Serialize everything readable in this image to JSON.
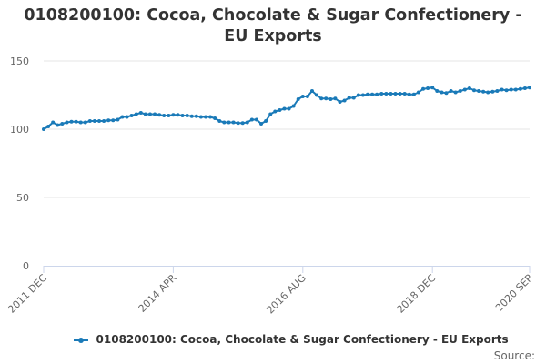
{
  "chart_data": {
    "type": "line",
    "title": "0108200100: Cocoa, Chocolate & Sugar Confectionery - EU Exports",
    "xlabel": "",
    "ylabel": "",
    "ylim": [
      0,
      150
    ],
    "yticks": [
      0,
      50,
      100,
      150
    ],
    "xtick_labels": [
      "2011 DEC",
      "2014 APR",
      "2016 AUG",
      "2018 DEC",
      "2020 SEP"
    ],
    "xtick_index": [
      0,
      28,
      56,
      84,
      105
    ],
    "grid": true,
    "legend_position": "bottom",
    "series": [
      {
        "name": "0108200100: Cocoa, Chocolate & Sugar Confectionery - EU Exports",
        "color": "#1a7ab8",
        "x_start": "2011 DEC",
        "frequency": "monthly",
        "values": [
          100,
          102,
          105,
          103,
          104,
          105,
          105.5,
          105.5,
          105,
          105,
          106,
          106,
          106,
          106,
          106.5,
          106.5,
          107,
          109,
          109,
          110,
          111,
          112,
          111,
          111,
          111,
          110.5,
          110,
          110,
          110.5,
          110.5,
          110,
          110,
          109.5,
          109.5,
          109,
          109,
          109,
          108,
          106,
          105,
          105,
          105,
          104.5,
          104.5,
          105,
          107,
          107,
          104,
          106,
          111,
          113,
          114,
          115,
          115,
          117,
          122,
          124,
          124,
          128,
          125,
          122.5,
          122.5,
          122,
          122.5,
          120,
          121,
          123,
          123,
          125,
          125,
          125.5,
          125.5,
          125.5,
          126,
          126,
          126,
          126,
          126,
          126,
          125.5,
          125.5,
          127,
          129.5,
          130,
          130.5,
          128,
          127,
          126.5,
          128,
          127,
          128,
          129,
          130,
          128.5,
          128,
          127.5,
          127,
          127.5,
          128,
          129,
          128.5,
          129,
          129,
          129.5,
          130,
          130.5
        ]
      }
    ],
    "legend_label": "0108200100: Cocoa, Chocolate & Sugar Confectionery - EU Exports",
    "source_label": "Source:"
  }
}
